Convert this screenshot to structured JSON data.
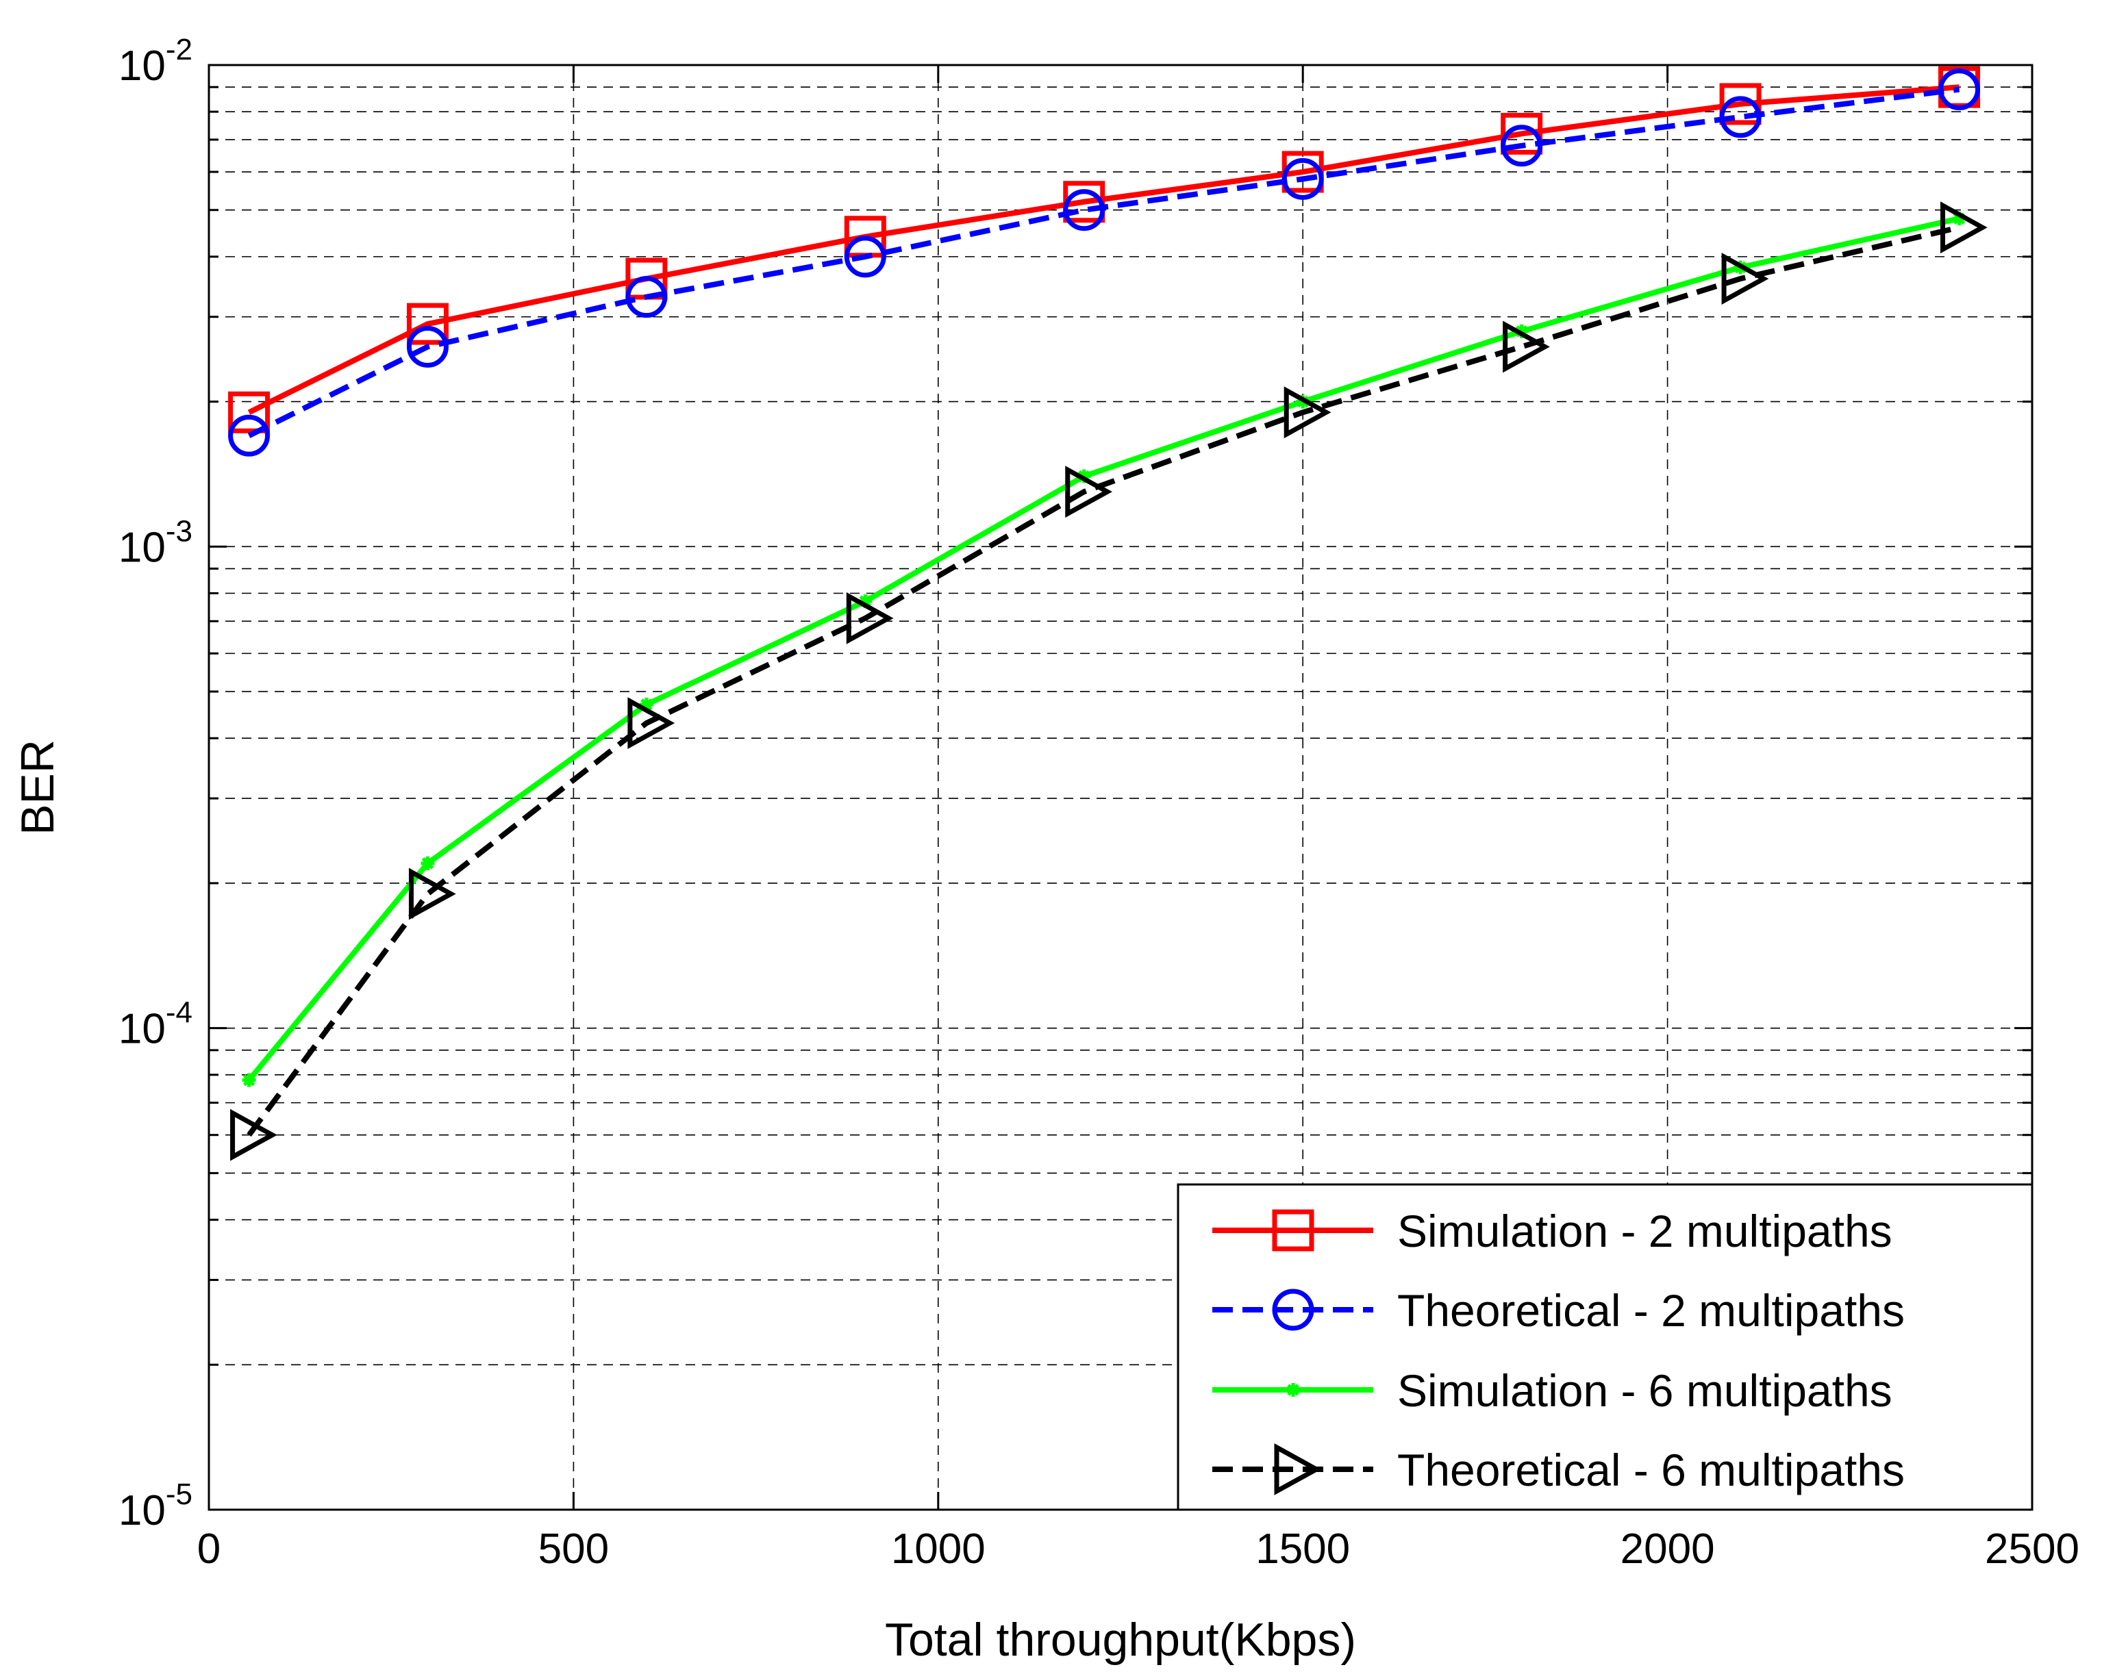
{
  "chart_data": {
    "type": "line",
    "title": "",
    "xlabel": "Total throughput(Kbps)",
    "ylabel": "BER",
    "xlim": [
      0,
      2500
    ],
    "ylim": [
      1e-05,
      0.01
    ],
    "yscale": "log",
    "grid": true,
    "x_ticks": [
      0,
      500,
      1000,
      1500,
      2000,
      2500
    ],
    "x_tick_labels": [
      "0",
      "500",
      "1000",
      "1500",
      "2000",
      "2500"
    ],
    "y_tick_labels": [
      {
        "base": "10",
        "exp": "-5",
        "value": 1e-05
      },
      {
        "base": "10",
        "exp": "-4",
        "value": 0.0001
      },
      {
        "base": "10",
        "exp": "-3",
        "value": 0.001
      },
      {
        "base": "10",
        "exp": "-2",
        "value": 0.01
      }
    ],
    "legend_position": "bottom-right",
    "x": [
      55,
      300,
      600,
      900,
      1200,
      1500,
      1800,
      2100,
      2400
    ],
    "series": [
      {
        "name": "Simulation - 2 multipaths",
        "color": "#ff0000",
        "dash": "solid",
        "marker": "square",
        "values": [
          0.0019,
          0.0029,
          0.0036,
          0.0044,
          0.0052,
          0.006,
          0.0072,
          0.0083,
          0.009
        ]
      },
      {
        "name": "Theoretical - 2 multipaths",
        "color": "#0000ff",
        "dash": "dashed",
        "marker": "circle",
        "values": [
          0.0017,
          0.0026,
          0.0033,
          0.004,
          0.005,
          0.0058,
          0.0068,
          0.0078,
          0.0089
        ]
      },
      {
        "name": "Simulation - 6 multipaths",
        "color": "#00ff00",
        "dash": "solid",
        "marker": "asterisk",
        "values": [
          7.8e-05,
          0.00022,
          0.00047,
          0.00077,
          0.0014,
          0.002,
          0.0028,
          0.0038,
          0.0048
        ]
      },
      {
        "name": "Theoretical - 6 multipaths",
        "color": "#000000",
        "dash": "dashed",
        "marker": "triangle-right",
        "values": [
          6e-05,
          0.00019,
          0.00043,
          0.00071,
          0.0013,
          0.0019,
          0.0026,
          0.0036,
          0.0046
        ]
      }
    ]
  }
}
